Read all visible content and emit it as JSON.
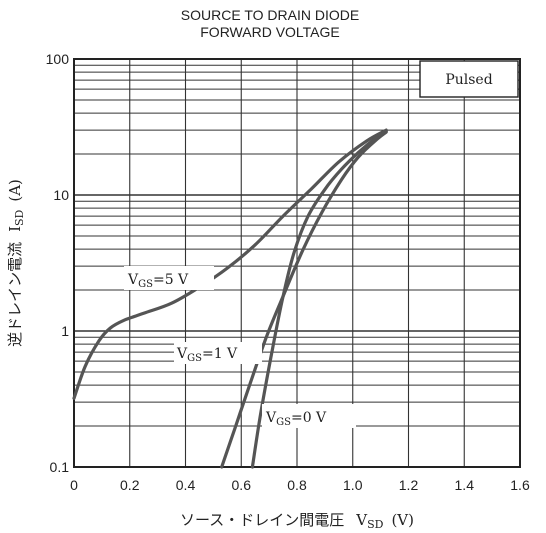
{
  "chart_data": {
    "type": "line",
    "title": "SOURCE TO DRAIN DIODE",
    "subtitle": "FORWARD VOLTAGE",
    "xlabel": {
      "prefix": "ソース・ドレイン間電圧",
      "var": "V",
      "sub": "SD",
      "unit": "(V)"
    },
    "ylabel": {
      "prefix": "逆ドレイン電流",
      "var": "I",
      "sub": "SD",
      "unit": "(A)"
    },
    "x_scale": "linear",
    "y_scale": "log",
    "xlim": [
      0,
      1.6
    ],
    "ylim": [
      0.1,
      100
    ],
    "x_ticks": [
      "0",
      "0.2",
      "0.4",
      "0.6",
      "0.8",
      "1.0",
      "1.2",
      "1.4",
      "1.6"
    ],
    "y_ticks": [
      "0.1",
      "1",
      "10",
      "100"
    ],
    "grid": true,
    "annotation": "Pulsed",
    "line_color": "#555555",
    "series": [
      {
        "name": "VGS=5 V",
        "label_var": "V",
        "label_sub": "GS",
        "label_rest": "=5 V",
        "x": [
          0.0,
          0.04,
          0.09,
          0.13,
          0.18,
          0.25,
          0.35,
          0.45,
          0.55,
          0.65,
          0.75,
          0.85,
          0.95,
          1.05,
          1.12
        ],
        "y": [
          0.32,
          0.55,
          0.85,
          1.05,
          1.2,
          1.35,
          1.6,
          2.1,
          2.9,
          4.3,
          7.0,
          11.0,
          17.5,
          25.0,
          30.0
        ]
      },
      {
        "name": "VGS=1 V",
        "label_var": "V",
        "label_sub": "GS",
        "label_rest": "=1 V",
        "x": [
          0.53,
          0.58,
          0.63,
          0.69,
          0.75,
          0.82,
          0.89,
          0.96,
          1.02,
          1.08,
          1.12
        ],
        "y": [
          0.1,
          0.2,
          0.4,
          0.9,
          1.8,
          3.9,
          7.5,
          13.0,
          19.0,
          25.0,
          29.0
        ]
      },
      {
        "name": "VGS=0 V",
        "label_var": "V",
        "label_sub": "GS",
        "label_rest": "=0 V",
        "x": [
          0.64,
          0.67,
          0.71,
          0.75,
          0.79,
          0.84,
          0.9,
          0.96,
          1.02,
          1.08,
          1.12
        ],
        "y": [
          0.1,
          0.25,
          0.7,
          1.8,
          3.8,
          7.0,
          11.0,
          15.5,
          20.5,
          26.0,
          29.5
        ]
      }
    ]
  }
}
